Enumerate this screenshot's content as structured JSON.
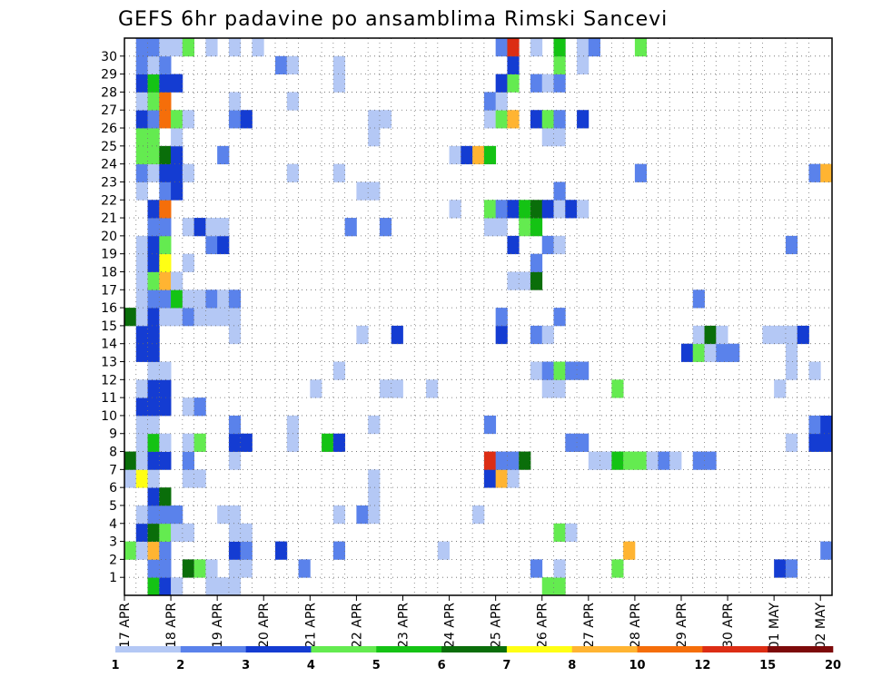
{
  "chart_data": {
    "type": "heatmap",
    "title": "GEFS 6hr padavine po ansamblima Rimski Sancevi",
    "y_ticks": [
      "1",
      "2",
      "3",
      "4",
      "5",
      "6",
      "7",
      "8",
      "9",
      "10",
      "11",
      "12",
      "13",
      "14",
      "15",
      "16",
      "17",
      "18",
      "19",
      "20",
      "21",
      "22",
      "23",
      "24",
      "25",
      "26",
      "27",
      "28",
      "29",
      "30"
    ],
    "x_ticks": [
      "17 APR",
      "18 APR",
      "19 APR",
      "20 APR",
      "21 APR",
      "22 APR",
      "23 APR",
      "24 APR",
      "25 APR",
      "26 APR",
      "27 APR",
      "28 APR",
      "29 APR",
      "30 APR",
      "01 MAY",
      "02 MAY"
    ],
    "legend_labels": [
      "1",
      "2",
      "3",
      "4",
      "5",
      "6",
      "7",
      "8",
      "10",
      "12",
      "15",
      "20"
    ],
    "legend_colors": [
      "#b4c8f5",
      "#5a82eb",
      "#143cd2",
      "#64eb50",
      "#14c314",
      "#0a6e0a",
      "#ffff14",
      "#ffb432",
      "#f56e0a",
      "#dc2d14",
      "#7d0a0a"
    ],
    "value_colors": {
      "1": "#b4c8f5",
      "2": "#5a82eb",
      "3": "#143cd2",
      "4": "#64eb50",
      "5": "#14c314",
      "6": "#0a6e0a",
      "7": "#ffff14",
      "8": "#ffb432",
      "9": "#f56e0a",
      "10": "#dc2d14",
      "11": "#7d0a0a"
    },
    "value_classes": [
      "1-2",
      "2-3",
      "3-4",
      "4-5",
      "5-6",
      "6-7",
      "7-8",
      "8-10",
      "10-12",
      "12-15",
      "15-20"
    ],
    "time_step": "6hr",
    "x_start": "17 APR",
    "grid": "dotted",
    "members": {
      "30": [
        [
          1,
          2
        ],
        [
          2,
          2
        ],
        [
          3,
          1
        ],
        [
          4,
          1
        ],
        [
          5,
          4
        ],
        [
          7,
          1
        ],
        [
          9,
          1
        ],
        [
          11,
          1
        ],
        [
          32,
          2
        ],
        [
          33,
          10
        ],
        [
          35,
          1
        ],
        [
          37,
          5
        ],
        [
          39,
          1
        ],
        [
          40,
          2
        ],
        [
          44,
          4
        ]
      ],
      "29": [
        [
          1,
          2
        ],
        [
          2,
          1
        ],
        [
          3,
          2
        ],
        [
          13,
          2
        ],
        [
          14,
          1
        ],
        [
          18,
          1
        ],
        [
          33,
          3
        ],
        [
          37,
          4
        ],
        [
          39,
          1
        ]
      ],
      "28": [
        [
          1,
          3
        ],
        [
          2,
          5
        ],
        [
          3,
          3
        ],
        [
          4,
          3
        ],
        [
          18,
          1
        ],
        [
          32,
          3
        ],
        [
          33,
          4
        ],
        [
          35,
          2
        ],
        [
          36,
          1
        ],
        [
          37,
          2
        ]
      ],
      "27": [
        [
          1,
          1
        ],
        [
          2,
          4
        ],
        [
          3,
          9
        ],
        [
          9,
          1
        ],
        [
          14,
          1
        ],
        [
          31,
          2
        ],
        [
          32,
          1
        ]
      ],
      "26": [
        [
          1,
          3
        ],
        [
          2,
          2
        ],
        [
          3,
          9
        ],
        [
          4,
          4
        ],
        [
          5,
          1
        ],
        [
          9,
          2
        ],
        [
          10,
          3
        ],
        [
          21,
          1
        ],
        [
          22,
          1
        ],
        [
          31,
          1
        ],
        [
          32,
          4
        ],
        [
          33,
          8
        ],
        [
          35,
          3
        ],
        [
          36,
          4
        ],
        [
          37,
          2
        ],
        [
          39,
          3
        ]
      ],
      "25": [
        [
          1,
          4
        ],
        [
          2,
          4
        ],
        [
          4,
          1
        ],
        [
          21,
          1
        ],
        [
          36,
          1
        ],
        [
          37,
          1
        ]
      ],
      "24": [
        [
          1,
          4
        ],
        [
          2,
          4
        ],
        [
          3,
          6
        ],
        [
          4,
          3
        ],
        [
          8,
          2
        ],
        [
          28,
          1
        ],
        [
          29,
          3
        ],
        [
          30,
          8
        ],
        [
          31,
          5
        ]
      ],
      "23": [
        [
          1,
          2
        ],
        [
          2,
          1
        ],
        [
          3,
          3
        ],
        [
          4,
          3
        ],
        [
          5,
          1
        ],
        [
          14,
          1
        ],
        [
          18,
          1
        ],
        [
          44,
          2
        ],
        [
          59,
          2
        ],
        [
          60,
          8
        ]
      ],
      "22": [
        [
          1,
          1
        ],
        [
          3,
          2
        ],
        [
          4,
          3
        ],
        [
          20,
          1
        ],
        [
          21,
          1
        ],
        [
          37,
          2
        ]
      ],
      "21": [
        [
          2,
          3
        ],
        [
          3,
          9
        ],
        [
          28,
          1
        ],
        [
          31,
          4
        ],
        [
          32,
          2
        ],
        [
          33,
          3
        ],
        [
          34,
          5
        ],
        [
          35,
          6
        ],
        [
          36,
          3
        ],
        [
          37,
          1
        ],
        [
          38,
          3
        ],
        [
          39,
          1
        ]
      ],
      "20": [
        [
          2,
          2
        ],
        [
          3,
          2
        ],
        [
          5,
          1
        ],
        [
          6,
          3
        ],
        [
          7,
          1
        ],
        [
          8,
          1
        ],
        [
          19,
          2
        ],
        [
          22,
          2
        ],
        [
          31,
          1
        ],
        [
          32,
          1
        ],
        [
          34,
          4
        ],
        [
          35,
          5
        ]
      ],
      "19": [
        [
          1,
          1
        ],
        [
          2,
          3
        ],
        [
          3,
          4
        ],
        [
          7,
          2
        ],
        [
          8,
          3
        ],
        [
          33,
          3
        ],
        [
          36,
          2
        ],
        [
          37,
          1
        ],
        [
          57,
          2
        ]
      ],
      "18": [
        [
          1,
          1
        ],
        [
          2,
          3
        ],
        [
          3,
          7
        ],
        [
          5,
          1
        ],
        [
          35,
          2
        ]
      ],
      "17": [
        [
          1,
          1
        ],
        [
          2,
          4
        ],
        [
          3,
          8
        ],
        [
          4,
          1
        ],
        [
          33,
          1
        ],
        [
          34,
          1
        ],
        [
          35,
          6
        ]
      ],
      "16": [
        [
          1,
          1
        ],
        [
          2,
          2
        ],
        [
          3,
          2
        ],
        [
          4,
          5
        ],
        [
          5,
          1
        ],
        [
          6,
          1
        ],
        [
          7,
          2
        ],
        [
          8,
          1
        ],
        [
          9,
          2
        ],
        [
          49,
          2
        ]
      ],
      "15": [
        [
          0,
          6
        ],
        [
          1,
          1
        ],
        [
          2,
          3
        ],
        [
          3,
          1
        ],
        [
          4,
          1
        ],
        [
          5,
          2
        ],
        [
          6,
          1
        ],
        [
          7,
          1
        ],
        [
          8,
          1
        ],
        [
          9,
          1
        ],
        [
          32,
          2
        ],
        [
          37,
          2
        ]
      ],
      "14": [
        [
          1,
          3
        ],
        [
          2,
          3
        ],
        [
          9,
          1
        ],
        [
          20,
          1
        ],
        [
          23,
          3
        ],
        [
          32,
          3
        ],
        [
          35,
          2
        ],
        [
          36,
          1
        ],
        [
          49,
          1
        ],
        [
          50,
          6
        ],
        [
          51,
          1
        ],
        [
          55,
          1
        ],
        [
          56,
          1
        ],
        [
          57,
          1
        ],
        [
          58,
          3
        ]
      ],
      "13": [
        [
          1,
          3
        ],
        [
          2,
          3
        ],
        [
          48,
          3
        ],
        [
          49,
          4
        ],
        [
          50,
          1
        ],
        [
          51,
          2
        ],
        [
          52,
          2
        ],
        [
          57,
          1
        ]
      ],
      "12": [
        [
          2,
          1
        ],
        [
          3,
          1
        ],
        [
          18,
          1
        ],
        [
          35,
          1
        ],
        [
          36,
          2
        ],
        [
          37,
          4
        ],
        [
          38,
          2
        ],
        [
          39,
          2
        ],
        [
          57,
          1
        ],
        [
          59,
          1
        ]
      ],
      "11": [
        [
          1,
          1
        ],
        [
          2,
          3
        ],
        [
          3,
          3
        ],
        [
          16,
          1
        ],
        [
          22,
          1
        ],
        [
          23,
          1
        ],
        [
          26,
          1
        ],
        [
          36,
          1
        ],
        [
          37,
          1
        ],
        [
          42,
          4
        ],
        [
          56,
          1
        ]
      ],
      "10": [
        [
          1,
          3
        ],
        [
          2,
          3
        ],
        [
          3,
          3
        ],
        [
          5,
          1
        ],
        [
          6,
          2
        ]
      ],
      "9": [
        [
          1,
          1
        ],
        [
          2,
          1
        ],
        [
          9,
          2
        ],
        [
          14,
          1
        ],
        [
          21,
          1
        ],
        [
          31,
          2
        ],
        [
          59,
          2
        ],
        [
          60,
          3
        ]
      ],
      "8": [
        [
          1,
          1
        ],
        [
          2,
          5
        ],
        [
          3,
          1
        ],
        [
          5,
          1
        ],
        [
          6,
          4
        ],
        [
          9,
          3
        ],
        [
          10,
          3
        ],
        [
          14,
          1
        ],
        [
          17,
          5
        ],
        [
          18,
          3
        ],
        [
          38,
          2
        ],
        [
          39,
          2
        ],
        [
          57,
          1
        ],
        [
          59,
          3
        ],
        [
          60,
          3
        ]
      ],
      "7": [
        [
          0,
          6
        ],
        [
          1,
          1
        ],
        [
          2,
          3
        ],
        [
          3,
          3
        ],
        [
          5,
          2
        ],
        [
          9,
          1
        ],
        [
          31,
          10
        ],
        [
          32,
          2
        ],
        [
          33,
          2
        ],
        [
          34,
          6
        ],
        [
          40,
          1
        ],
        [
          41,
          1
        ],
        [
          42,
          5
        ],
        [
          43,
          4
        ],
        [
          44,
          4
        ],
        [
          45,
          1
        ],
        [
          46,
          2
        ],
        [
          47,
          1
        ],
        [
          49,
          2
        ],
        [
          50,
          2
        ]
      ],
      "6": [
        [
          0,
          1
        ],
        [
          1,
          7
        ],
        [
          2,
          1
        ],
        [
          5,
          1
        ],
        [
          6,
          1
        ],
        [
          21,
          1
        ],
        [
          31,
          3
        ],
        [
          32,
          8
        ],
        [
          33,
          1
        ]
      ],
      "5": [
        [
          2,
          3
        ],
        [
          3,
          6
        ],
        [
          21,
          1
        ]
      ],
      "4": [
        [
          1,
          1
        ],
        [
          2,
          2
        ],
        [
          3,
          2
        ],
        [
          4,
          2
        ],
        [
          8,
          1
        ],
        [
          9,
          1
        ],
        [
          18,
          1
        ],
        [
          20,
          2
        ],
        [
          21,
          1
        ],
        [
          30,
          1
        ]
      ],
      "3": [
        [
          1,
          3
        ],
        [
          2,
          6
        ],
        [
          3,
          4
        ],
        [
          4,
          1
        ],
        [
          5,
          1
        ],
        [
          9,
          1
        ],
        [
          10,
          1
        ],
        [
          37,
          4
        ],
        [
          38,
          1
        ]
      ],
      "2": [
        [
          0,
          4
        ],
        [
          1,
          1
        ],
        [
          2,
          8
        ],
        [
          3,
          2
        ],
        [
          9,
          3
        ],
        [
          10,
          2
        ],
        [
          13,
          3
        ],
        [
          18,
          2
        ],
        [
          27,
          1
        ],
        [
          43,
          8
        ],
        [
          60,
          2
        ]
      ],
      "1": [
        [
          2,
          2
        ],
        [
          3,
          2
        ],
        [
          5,
          6
        ],
        [
          6,
          4
        ],
        [
          7,
          1
        ],
        [
          9,
          1
        ],
        [
          10,
          1
        ],
        [
          15,
          2
        ],
        [
          35,
          2
        ],
        [
          37,
          1
        ],
        [
          42,
          4
        ],
        [
          56,
          3
        ],
        [
          57,
          2
        ]
      ],
      "0": [
        [
          2,
          5
        ],
        [
          3,
          3
        ],
        [
          4,
          1
        ],
        [
          7,
          1
        ],
        [
          8,
          1
        ],
        [
          9,
          1
        ],
        [
          36,
          4
        ],
        [
          37,
          4
        ]
      ]
    }
  }
}
